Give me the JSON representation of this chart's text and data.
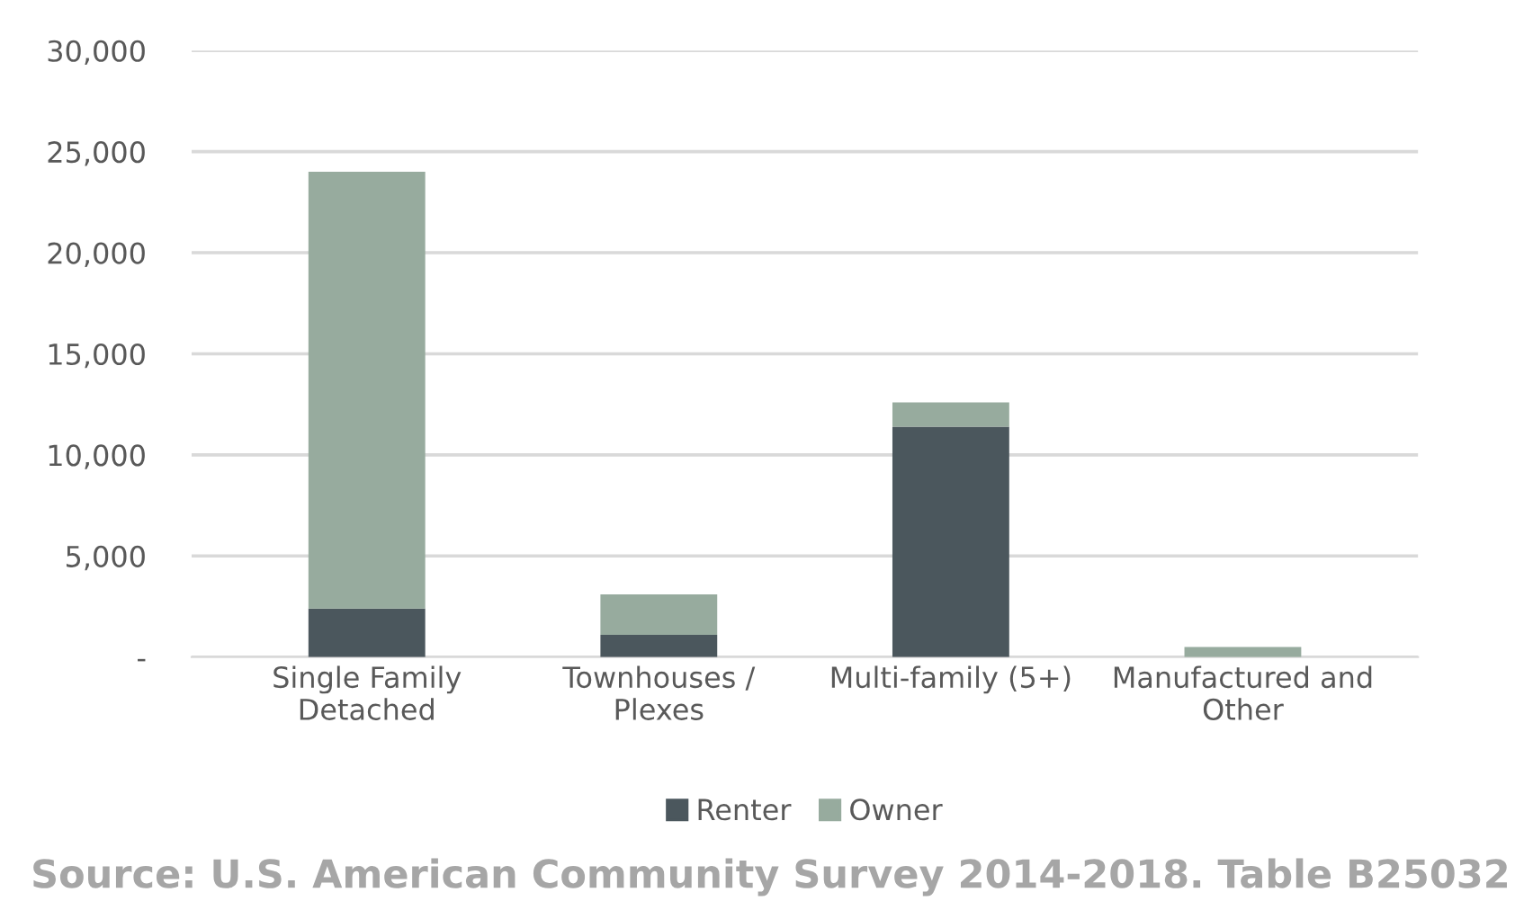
{
  "chart_data": {
    "type": "bar",
    "stacked": true,
    "categories": [
      "Single Family\nDetached",
      "Townhouses /\nPlexes",
      "Multi-family (5+)",
      "Manufactured and\nOther"
    ],
    "series": [
      {
        "name": "Renter",
        "color": "#4b575d",
        "values": [
          2400,
          1100,
          11400,
          0
        ]
      },
      {
        "name": "Owner",
        "color": "#97ab9e",
        "values": [
          21600,
          2000,
          1200,
          500
        ]
      }
    ],
    "ylim": [
      0,
      30000
    ],
    "yticks": [
      {
        "value": 0,
        "label": "-"
      },
      {
        "value": 5000,
        "label": "5,000"
      },
      {
        "value": 10000,
        "label": "10,000"
      },
      {
        "value": 15000,
        "label": "15,000"
      },
      {
        "value": 20000,
        "label": "20,000"
      },
      {
        "value": 25000,
        "label": "25,000"
      },
      {
        "value": 30000,
        "label": "30,000"
      }
    ],
    "grid": "y",
    "legend": "bottom",
    "annotations": [
      "Source: U.S. American Community Survey 2014-2018. Table B25032"
    ]
  }
}
